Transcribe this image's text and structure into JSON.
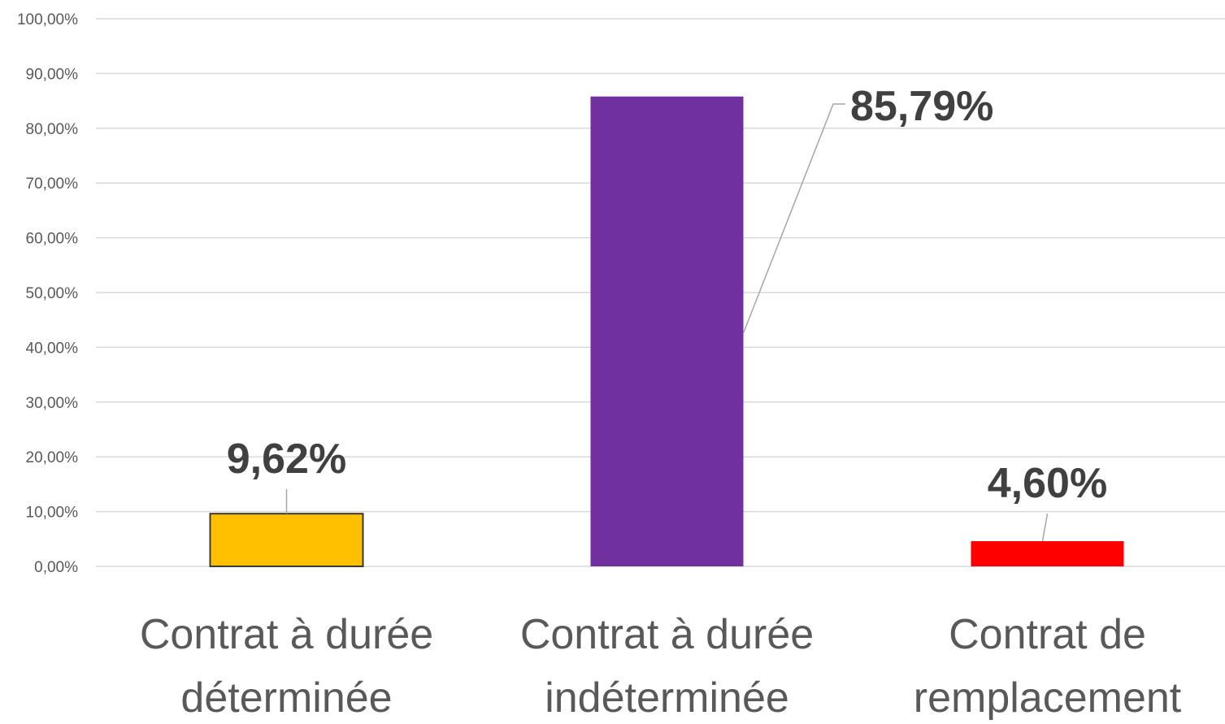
{
  "chart_data": {
    "type": "bar",
    "title": "",
    "xlabel": "",
    "ylabel": "",
    "categories": [
      [
        "Contrat à durée",
        "déterminée"
      ],
      [
        "Contrat à durée",
        "indéterminée"
      ],
      [
        "Contrat de",
        "remplacement"
      ]
    ],
    "values": [
      9.62,
      85.79,
      4.6
    ],
    "data_labels": [
      "9,62%",
      "85,79%",
      "4,60%"
    ],
    "colors": [
      "#FFC000",
      "#7030A0",
      "#FF0000"
    ],
    "bar_outline": [
      "#3a3a3a",
      "none",
      "none"
    ],
    "ylim": [
      0,
      100
    ],
    "yticks": [
      0,
      10,
      20,
      30,
      40,
      50,
      60,
      70,
      80,
      90,
      100
    ],
    "ytick_labels": [
      "0,00%",
      "10,00%",
      "20,00%",
      "30,00%",
      "40,00%",
      "50,00%",
      "60,00%",
      "70,00%",
      "80,00%",
      "90,00%",
      "100,00%"
    ],
    "grid": true,
    "gridline_color": "#d9d9d9",
    "label_color": "#404040",
    "category_label_color": "#595959",
    "tick_label_color": "#595959",
    "leader_line_color": "#a6a6a6",
    "legend": "none"
  }
}
